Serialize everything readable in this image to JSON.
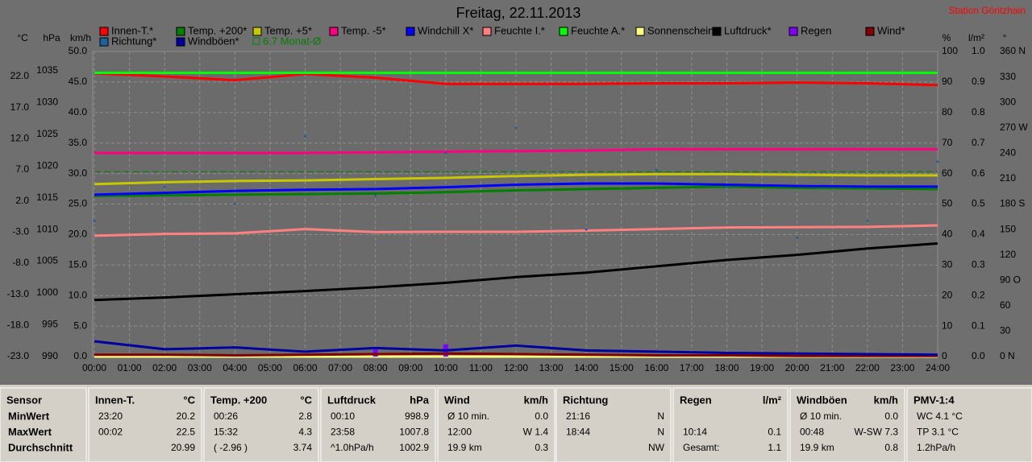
{
  "chart_data": {
    "type": "line",
    "title": "Freitag, 22.11.2013",
    "station": "Station Göritzhain",
    "grid": true,
    "xlim": [
      0,
      24
    ],
    "xticks": [
      {
        "value": 0,
        "label": "00:00"
      },
      {
        "value": 1,
        "label": "01:00"
      },
      {
        "value": 2,
        "label": "02:00"
      },
      {
        "value": 3,
        "label": "03:00"
      },
      {
        "value": 4,
        "label": "04:00"
      },
      {
        "value": 5,
        "label": "05:00"
      },
      {
        "value": 6,
        "label": "06:00"
      },
      {
        "value": 7,
        "label": "07:00"
      },
      {
        "value": 8,
        "label": "08:00"
      },
      {
        "value": 9,
        "label": "09:00"
      },
      {
        "value": 10,
        "label": "10:00"
      },
      {
        "value": 11,
        "label": "11:00"
      },
      {
        "value": 12,
        "label": "12:00"
      },
      {
        "value": 13,
        "label": "13:00"
      },
      {
        "value": 14,
        "label": "14:00"
      },
      {
        "value": 15,
        "label": "15:00"
      },
      {
        "value": 16,
        "label": "16:00"
      },
      {
        "value": 17,
        "label": "17:00"
      },
      {
        "value": 18,
        "label": "18:00"
      },
      {
        "value": 19,
        "label": "19:00"
      },
      {
        "value": 20,
        "label": "20:00"
      },
      {
        "value": 21,
        "label": "21:00"
      },
      {
        "value": 22,
        "label": "22:00"
      },
      {
        "value": 23,
        "label": "23:00"
      },
      {
        "value": 24,
        "label": "24:00"
      }
    ],
    "x": [
      0,
      2,
      4,
      6,
      8,
      10,
      12,
      14,
      16,
      18,
      20,
      22,
      24
    ],
    "axes": [
      {
        "id": "temp",
        "label": "°C",
        "side": "left",
        "lim": [
          -23,
          26
        ],
        "ticks": [
          {
            "value": -23,
            "label": "-23.0"
          },
          {
            "value": -18,
            "label": "-18.0"
          },
          {
            "value": -13,
            "label": "-13.0"
          },
          {
            "value": -8,
            "label": "-8.0"
          },
          {
            "value": -3,
            "label": "-3.0"
          },
          {
            "value": 2,
            "label": "2.0"
          },
          {
            "value": 7,
            "label": "7.0"
          },
          {
            "value": 12,
            "label": "12.0"
          },
          {
            "value": 17,
            "label": "17.0"
          },
          {
            "value": 22,
            "label": "22.0"
          }
        ]
      },
      {
        "id": "hpa",
        "label": "hPa",
        "side": "left",
        "lim": [
          990,
          1038
        ],
        "ticks": [
          990,
          995,
          1000,
          1005,
          1010,
          1015,
          1020,
          1025,
          1030,
          1035
        ]
      },
      {
        "id": "kmh",
        "label": "km/h",
        "side": "left",
        "lim": [
          0,
          50
        ],
        "ticks": [
          {
            "value": 0,
            "label": "0.0"
          },
          {
            "value": 5,
            "label": "5.0"
          },
          {
            "value": 10,
            "label": "10.0"
          },
          {
            "value": 15,
            "label": "15.0"
          },
          {
            "value": 20,
            "label": "20.0"
          },
          {
            "value": 25,
            "label": "25.0"
          },
          {
            "value": 30,
            "label": "30.0"
          },
          {
            "value": 35,
            "label": "35.0"
          },
          {
            "value": 40,
            "label": "40.0"
          },
          {
            "value": 45,
            "label": "45.0"
          },
          {
            "value": 50,
            "label": "50.0"
          }
        ]
      },
      {
        "id": "pct",
        "label": "%",
        "side": "right",
        "lim": [
          0,
          100
        ],
        "ticks": [
          0,
          10,
          20,
          30,
          40,
          50,
          60,
          70,
          80,
          90,
          100
        ]
      },
      {
        "id": "rain",
        "label": "l/m²",
        "side": "right",
        "lim": [
          0,
          1
        ],
        "ticks": [
          {
            "value": 0,
            "label": "0.0"
          },
          {
            "value": 0.1,
            "label": "0.1"
          },
          {
            "value": 0.2,
            "label": "0.2"
          },
          {
            "value": 0.3,
            "label": "0.3"
          },
          {
            "value": 0.4,
            "label": "0.4"
          },
          {
            "value": 0.5,
            "label": "0.5"
          },
          {
            "value": 0.6,
            "label": "0.6"
          },
          {
            "value": 0.7,
            "label": "0.7"
          },
          {
            "value": 0.8,
            "label": "0.8"
          },
          {
            "value": 0.9,
            "label": "0.9"
          },
          {
            "value": 1,
            "label": "1.0"
          }
        ]
      },
      {
        "id": "deg",
        "label": "°",
        "side": "right",
        "lim": [
          0,
          360
        ],
        "ticks": [
          {
            "value": 0,
            "label": "0 N"
          },
          30,
          60,
          {
            "value": 90,
            "label": "90 O"
          },
          120,
          150,
          {
            "value": 180,
            "label": "180 S"
          },
          210,
          240,
          {
            "value": 270,
            "label": "270 W"
          },
          300,
          330,
          {
            "value": 360,
            "label": "360 N"
          }
        ]
      }
    ],
    "series": [
      {
        "name": "Innen-T.*",
        "color": "#ff0000",
        "axis": "temp",
        "style": "line",
        "values": [
          22.5,
          22.0,
          21.4,
          22.4,
          21.8,
          20.8,
          20.8,
          20.8,
          20.9,
          20.9,
          21.0,
          20.9,
          20.6
        ]
      },
      {
        "name": "Temp. +200*",
        "color": "#008000",
        "axis": "temp",
        "style": "line",
        "values": [
          2.8,
          2.9,
          3.0,
          3.1,
          3.2,
          3.4,
          3.7,
          3.9,
          4.1,
          4.3,
          4.1,
          4.0,
          3.9
        ]
      },
      {
        "name": "Temp. +5*",
        "color": "#c8c800",
        "axis": "temp",
        "style": "line",
        "values": [
          4.7,
          5.0,
          5.2,
          5.3,
          5.5,
          5.7,
          6.0,
          6.2,
          6.3,
          6.3,
          6.2,
          6.1,
          6.1
        ]
      },
      {
        "name": "Temp. -5*",
        "color": "#ff0080",
        "axis": "temp",
        "style": "line",
        "values": [
          9.7,
          9.7,
          9.7,
          9.7,
          9.8,
          9.9,
          10.0,
          10.1,
          10.3,
          10.3,
          10.3,
          10.3,
          10.3
        ]
      },
      {
        "name": "Windchill X*",
        "color": "#0000ff",
        "axis": "temp",
        "style": "line",
        "values": [
          3.0,
          3.3,
          3.6,
          3.8,
          3.9,
          4.2,
          4.6,
          4.8,
          4.8,
          4.6,
          4.4,
          4.3,
          4.3
        ]
      },
      {
        "name": "Feuchte I.*",
        "color": "#ff8080",
        "axis": "pct",
        "style": "line",
        "values": [
          39.6,
          40.2,
          40.4,
          41.8,
          40.8,
          40.9,
          40.9,
          41.3,
          41.8,
          42.3,
          42.4,
          42.5,
          43.0
        ]
      },
      {
        "name": "Feuchte A.*",
        "color": "#00ff00",
        "axis": "pct",
        "style": "line",
        "values": [
          93,
          93,
          93,
          93,
          93,
          93,
          93,
          93,
          93,
          93,
          93,
          93,
          93
        ]
      },
      {
        "name": "Sonnenschein",
        "color": "#ffff80",
        "axis": "kmh",
        "style": "line",
        "values": [
          0,
          0,
          0,
          0,
          0,
          0,
          0,
          0,
          0,
          0,
          0,
          0,
          0
        ]
      },
      {
        "name": "Luftdruck*",
        "color": "#000000",
        "axis": "hpa",
        "style": "line",
        "values": [
          998.9,
          999.3,
          999.8,
          1000.3,
          1000.9,
          1001.6,
          1002.5,
          1003.2,
          1004.2,
          1005.2,
          1006.0,
          1007.0,
          1007.8
        ]
      },
      {
        "name": "Regen",
        "color": "#8000ff",
        "axis": "rain",
        "style": "bar",
        "values": [
          0,
          0,
          0,
          0,
          0.03,
          0.04,
          0,
          0,
          0,
          0,
          0,
          0,
          0
        ]
      },
      {
        "name": "Wind*",
        "color": "#800000",
        "axis": "kmh",
        "style": "line",
        "values": [
          0.3,
          0.3,
          0.2,
          0.3,
          0.4,
          0.5,
          0.4,
          0.3,
          0.2,
          0.2,
          0.1,
          0.1,
          0.1
        ]
      },
      {
        "name": "Richtung*",
        "color": "#1f5f9f",
        "axis": "deg",
        "style": "dots",
        "values": [
          160,
          200,
          180,
          260,
          190,
          240,
          270,
          150,
          220,
          200,
          140,
          160,
          230
        ]
      },
      {
        "name": "Windböen*",
        "color": "#0000a0",
        "axis": "kmh",
        "style": "line",
        "values": [
          2.5,
          1.2,
          1.5,
          0.8,
          1.4,
          1.0,
          1.8,
          1.0,
          0.8,
          0.6,
          0.5,
          0.4,
          0.3
        ]
      }
    ],
    "reference_lines": [
      {
        "name": "6.7 Monat-Ø",
        "value": 6.7,
        "axis": "temp",
        "color": "#008000"
      }
    ]
  },
  "table": {
    "panels": [
      {
        "title": "Sensor",
        "rows": [
          {
            "time": "MinWert"
          },
          {
            "time": "MaxWert"
          },
          {
            "time": "Durchschnitt"
          }
        ]
      },
      {
        "title": "Innen-T.",
        "unit": "°C",
        "rows": [
          {
            "time": "23:20",
            "value": "20.2"
          },
          {
            "time": "00:02",
            "value": "22.5"
          },
          {
            "value": "20.99"
          }
        ]
      },
      {
        "title": "Temp. +200",
        "unit": "°C",
        "rows": [
          {
            "time": "00:26",
            "value": "2.8"
          },
          {
            "time": "15:32",
            "value": "4.3"
          },
          {
            "time": "( -2.96 )",
            "value": "3.74"
          }
        ]
      },
      {
        "title": "Luftdruck",
        "unit": "hPa",
        "rows": [
          {
            "time": "00:10",
            "value": "998.9"
          },
          {
            "time": "23:58",
            "value": "1007.8"
          },
          {
            "time": "^1.0hPa/h",
            "value": "1002.9"
          }
        ]
      },
      {
        "title": "Wind",
        "unit": "km/h",
        "rows": [
          {
            "time": "Ø 10 min.",
            "value": "0.0"
          },
          {
            "time": "12:00",
            "value": "W 1.4"
          },
          {
            "time": "19.9 km",
            "value": "0.3"
          }
        ]
      },
      {
        "title": "Richtung",
        "rows": [
          {
            "time": "21:16",
            "value": "N"
          },
          {
            "time": "18:44",
            "value": "N"
          },
          {
            "value": "NW"
          }
        ]
      },
      {
        "title": "Regen",
        "unit": "l/m²",
        "rows": [
          {},
          {
            "time": "10:14",
            "value": "0.1"
          },
          {
            "time": "Gesamt:",
            "value": "1.1"
          }
        ]
      },
      {
        "title": "Windböen",
        "unit": "km/h",
        "rows": [
          {
            "time": "Ø 10 min.",
            "value": "0.0"
          },
          {
            "time": "00:48",
            "value": "W-SW 7.3"
          },
          {
            "time": "19.9 km",
            "value": "0.8"
          }
        ]
      },
      {
        "title": "PMV-1:4",
        "rows": [
          {
            "time": "WC 4.1 °C"
          },
          {
            "time": "TP 3.1 °C"
          },
          {
            "time": "1.2hPa/h"
          }
        ]
      }
    ]
  }
}
